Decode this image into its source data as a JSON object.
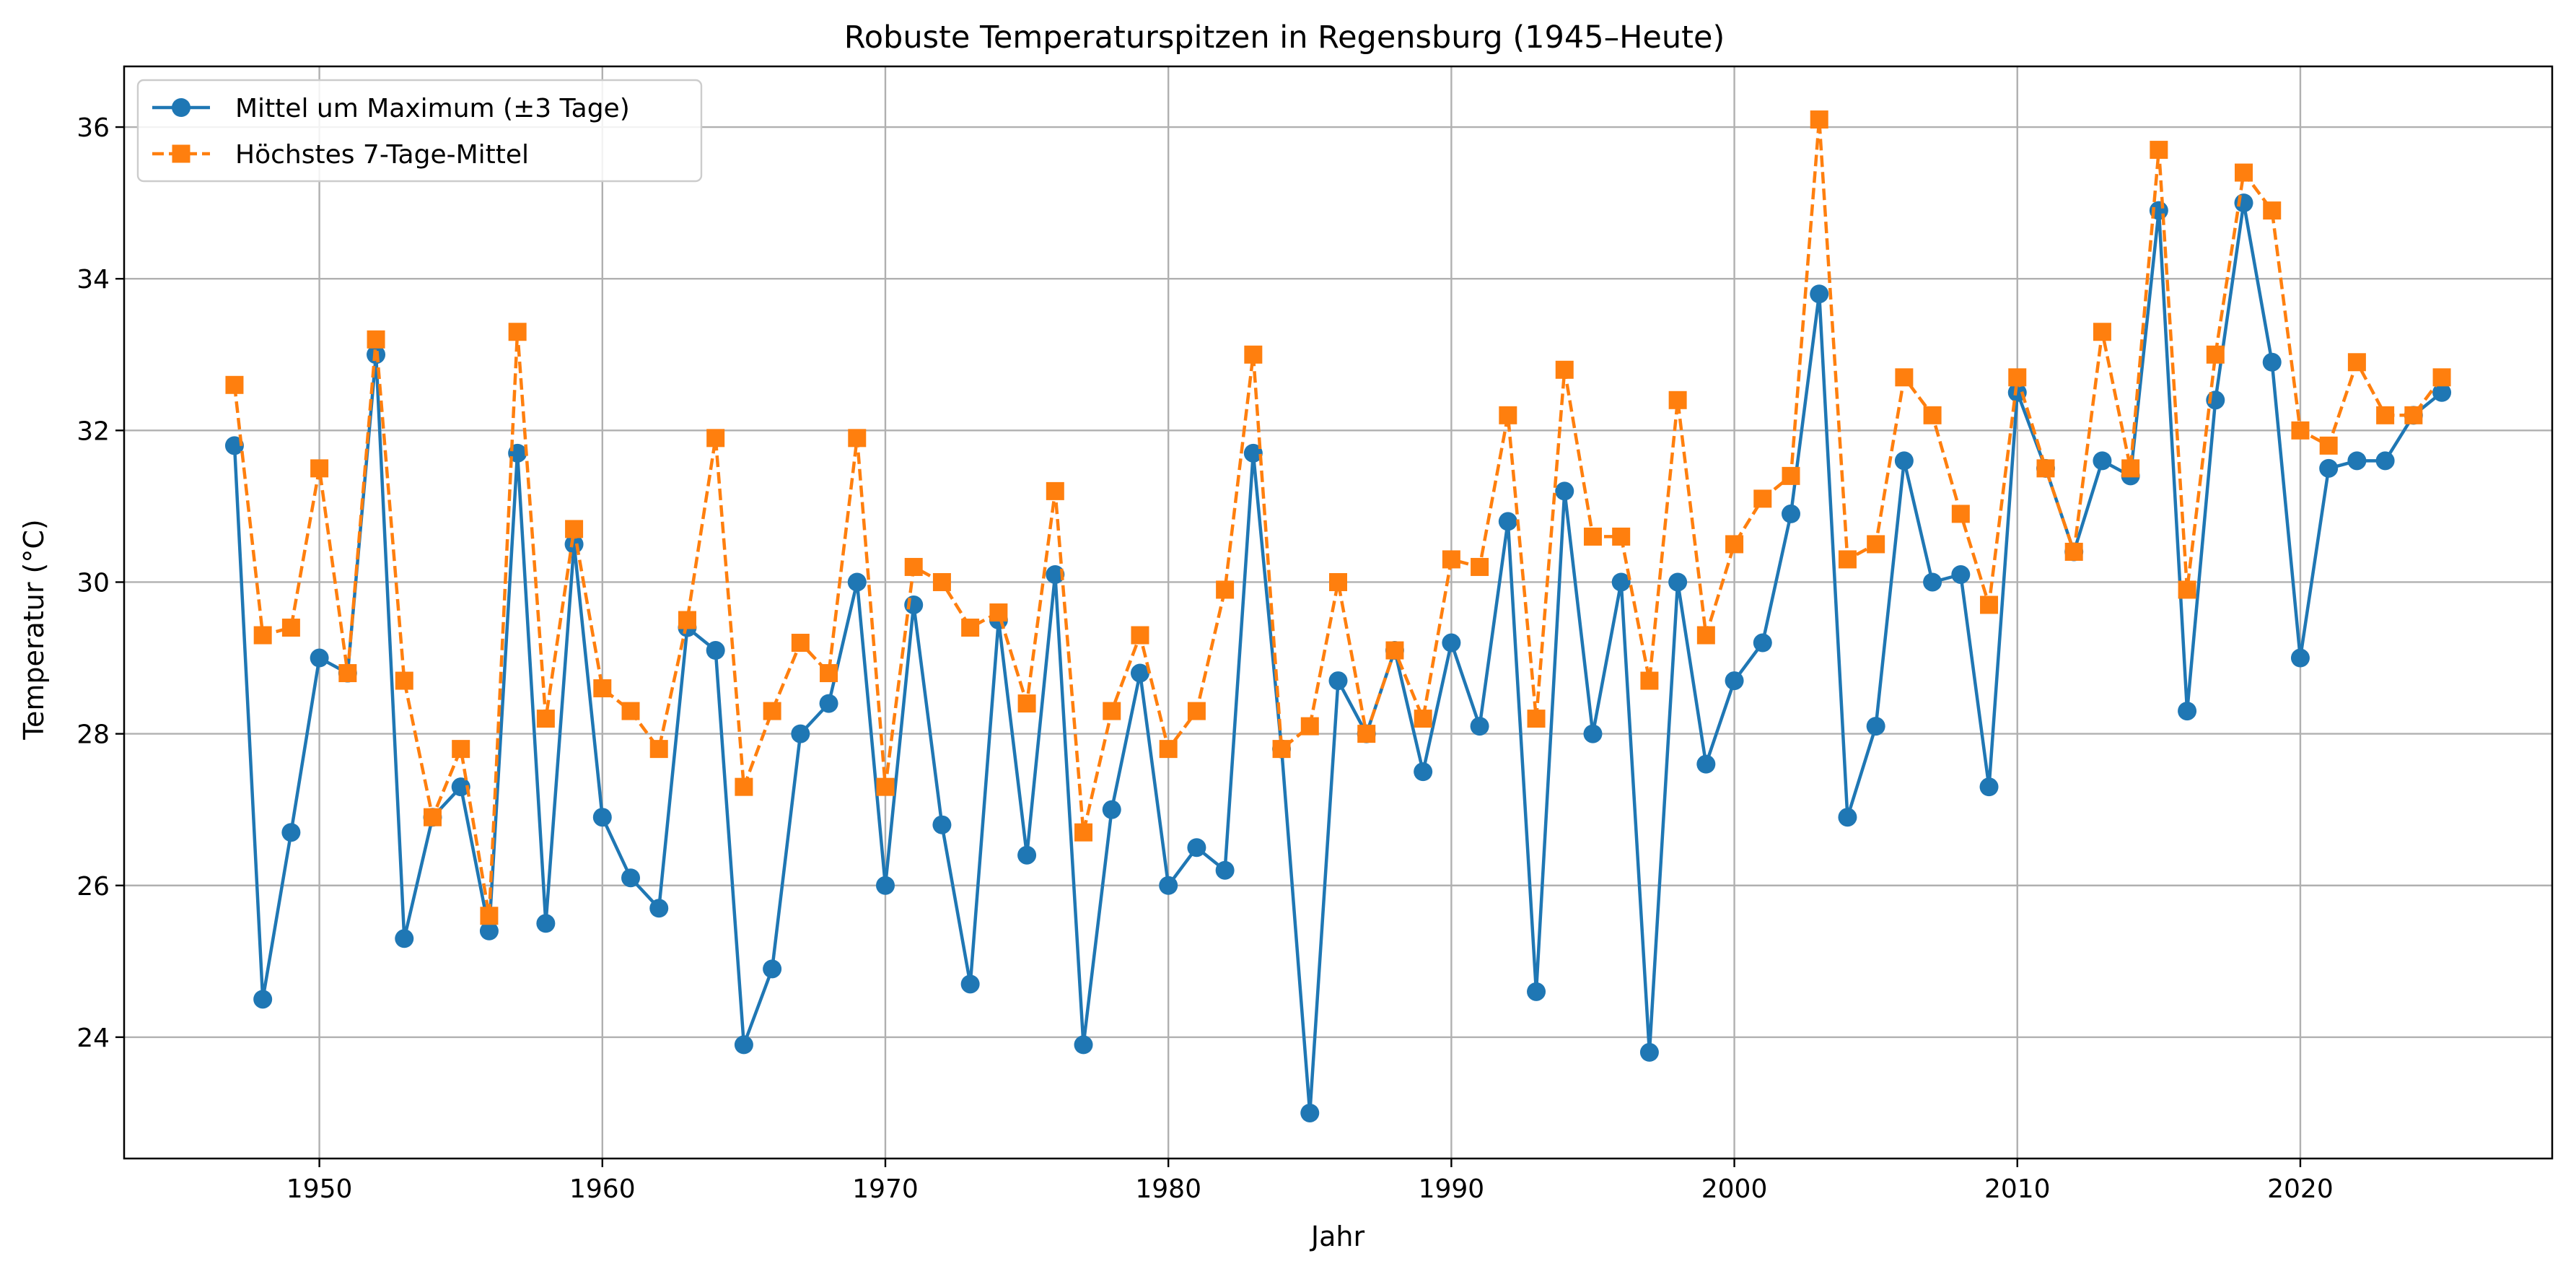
{
  "chart_data": {
    "type": "line",
    "title": "Robuste Temperaturspitzen in Regensburg (1945–Heute)",
    "xlabel": "Jahr",
    "ylabel": "Temperatur (°C)",
    "xlim": [
      1942.1,
      1928.9
    ],
    "ylim": [
      22.4,
      36.8
    ],
    "xticks": [
      1950,
      1960,
      1970,
      1980,
      1990,
      2000,
      2010,
      2020
    ],
    "yticks": [
      24,
      26,
      28,
      30,
      32,
      34,
      36
    ],
    "grid": true,
    "legend_position": "top-left",
    "x": [
      1947,
      1948,
      1949,
      1950,
      1951,
      1952,
      1953,
      1954,
      1955,
      1956,
      1957,
      1958,
      1959,
      1960,
      1961,
      1962,
      1963,
      1964,
      1965,
      1966,
      1967,
      1968,
      1969,
      1970,
      1971,
      1972,
      1973,
      1974,
      1975,
      1976,
      1977,
      1978,
      1979,
      1980,
      1981,
      1982,
      1983,
      1984,
      1985,
      1986,
      1987,
      1988,
      1989,
      1990,
      1991,
      1992,
      1993,
      1994,
      1995,
      1996,
      1997,
      1998,
      1999,
      2000,
      2001,
      2002,
      2003,
      2004,
      2005,
      2006,
      2007,
      2008,
      2009,
      2010,
      2011,
      2012,
      2013,
      2014,
      2015,
      2016,
      2017,
      2018,
      2019,
      2020,
      2021,
      2022,
      2023,
      2024,
      2025
    ],
    "series": [
      {
        "name": "Mittel um Maximum (±3 Tage)",
        "color": "#1f77b4",
        "marker": "circle",
        "linestyle": "solid",
        "values": [
          31.8,
          24.5,
          26.7,
          29.0,
          28.8,
          33.0,
          25.3,
          26.9,
          27.3,
          25.4,
          31.7,
          25.5,
          30.5,
          26.9,
          26.1,
          25.7,
          29.4,
          29.1,
          23.9,
          24.9,
          28.0,
          28.4,
          30.0,
          26.0,
          29.7,
          26.8,
          24.7,
          29.5,
          26.4,
          30.1,
          23.9,
          27.0,
          28.8,
          26.0,
          26.5,
          26.2,
          31.7,
          27.8,
          23.0,
          28.7,
          28.0,
          29.1,
          27.5,
          29.2,
          28.1,
          30.8,
          24.6,
          31.2,
          28.0,
          30.0,
          23.8,
          30.0,
          27.6,
          28.7,
          29.2,
          30.9,
          33.8,
          26.9,
          28.1,
          31.6,
          30.0,
          30.1,
          27.3,
          32.5,
          31.5,
          30.4,
          31.6,
          31.4,
          34.9,
          28.3,
          32.4,
          35.0,
          32.9,
          29.0,
          31.5,
          31.6,
          31.6,
          32.2,
          32.5
        ]
      },
      {
        "name": "Höchstes 7-Tage-Mittel",
        "color": "#ff7f0e",
        "marker": "square",
        "linestyle": "dashed",
        "values": [
          32.6,
          29.3,
          29.4,
          31.5,
          28.8,
          33.2,
          28.7,
          26.9,
          27.8,
          25.6,
          33.3,
          28.2,
          30.7,
          28.6,
          28.3,
          27.8,
          29.5,
          31.9,
          27.3,
          28.3,
          29.2,
          28.8,
          31.9,
          27.3,
          30.2,
          30.0,
          29.4,
          29.6,
          28.4,
          31.2,
          26.7,
          28.3,
          29.3,
          27.8,
          28.3,
          29.9,
          33.0,
          27.8,
          28.1,
          30.0,
          28.0,
          29.1,
          28.2,
          30.3,
          30.2,
          32.2,
          28.2,
          32.8,
          30.6,
          30.6,
          28.7,
          32.4,
          29.3,
          30.5,
          31.1,
          31.4,
          36.1,
          30.3,
          30.5,
          32.7,
          32.2,
          30.9,
          29.7,
          32.7,
          31.5,
          30.4,
          33.3,
          31.5,
          35.7,
          29.9,
          33.0,
          35.4,
          34.9,
          32.0,
          31.8,
          32.9,
          32.2,
          32.2,
          32.7
        ]
      }
    ]
  }
}
